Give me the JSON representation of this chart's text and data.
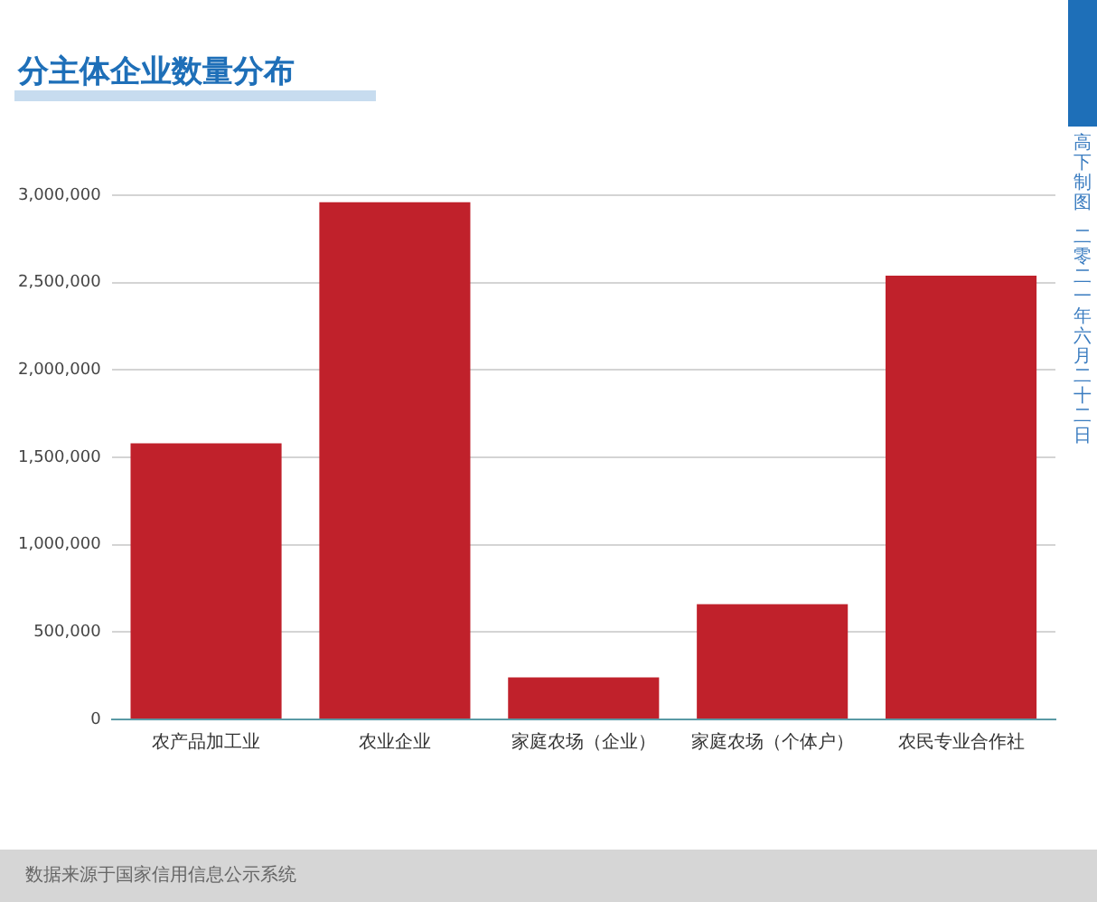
{
  "chart_data": {
    "type": "bar",
    "title": "分主体企业数量分布",
    "categories": [
      "农产品加工业",
      "农业企业",
      "家庭农场（企业）",
      "家庭农场（个体户）",
      "农民专业合作社"
    ],
    "values": [
      1580000,
      2960000,
      240000,
      660000,
      2540000
    ],
    "color": "#c0212b",
    "ylim": [
      0,
      3000000
    ],
    "yticks": [
      0,
      {
        "value": 500000,
        "label": "500,000"
      },
      {
        "value": 1000000,
        "label": "1,000,000"
      },
      {
        "value": 1500000,
        "label": "1,500,000"
      },
      {
        "value": 2000000,
        "label": "2,000,000"
      },
      {
        "value": 2500000,
        "label": "2,500,000"
      },
      {
        "value": 3000000,
        "label": "3,000,000"
      }
    ],
    "grid": "y",
    "legend": false,
    "annotations": [
      "高下制图",
      "二零二一年六月二十二日",
      "数据来源于国家信用信息公示系统"
    ]
  }
}
